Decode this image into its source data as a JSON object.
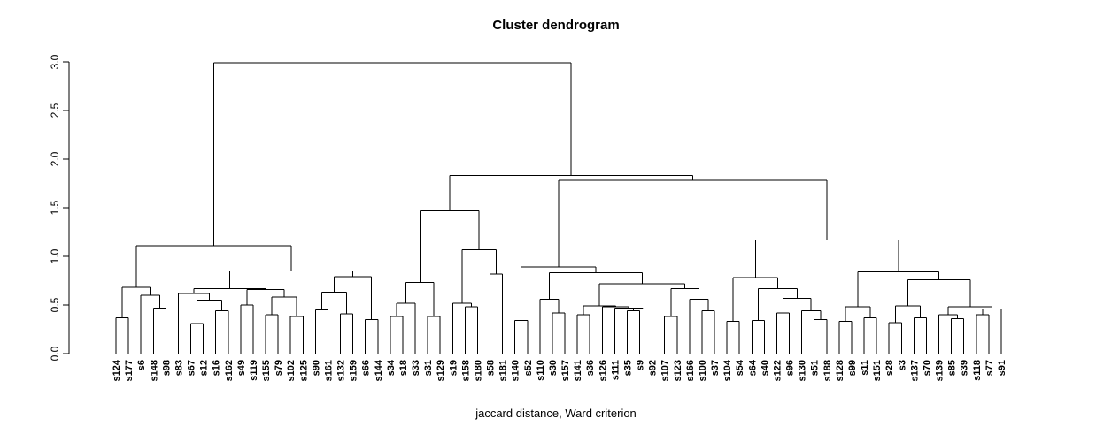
{
  "title": "Cluster dendrogram",
  "xlabel": "jaccard distance, Ward criterion",
  "chart_data": {
    "type": "dendrogram",
    "title": "Cluster dendrogram",
    "xlabel": "jaccard distance, Ward criterion",
    "ylim": [
      0,
      3
    ],
    "y_ticks": [
      0,
      0.5,
      1,
      1.5,
      2,
      2.5,
      3
    ],
    "y_tick_labels": [
      "0.0",
      "0.5",
      "1.0",
      "1.5",
      "2.0",
      "2.5",
      "3.0"
    ],
    "grid": "off",
    "line_color": "#000000",
    "label_colors": {
      "red": "#FF0000",
      "cyan": "#00FFFF"
    },
    "leaves": [
      {
        "name": "s124",
        "color": "cyan"
      },
      {
        "name": "s177",
        "color": "cyan"
      },
      {
        "name": "s6",
        "color": "red"
      },
      {
        "name": "s148",
        "color": "cyan"
      },
      {
        "name": "s98",
        "color": "red"
      },
      {
        "name": "s83",
        "color": "red"
      },
      {
        "name": "s67",
        "color": "cyan"
      },
      {
        "name": "s12",
        "color": "cyan"
      },
      {
        "name": "s16",
        "color": "red"
      },
      {
        "name": "s162",
        "color": "red"
      },
      {
        "name": "s49",
        "color": "cyan"
      },
      {
        "name": "s119",
        "color": "red"
      },
      {
        "name": "s155",
        "color": "red"
      },
      {
        "name": "s79",
        "color": "red"
      },
      {
        "name": "s102",
        "color": "red"
      },
      {
        "name": "s125",
        "color": "cyan"
      },
      {
        "name": "s90",
        "color": "red"
      },
      {
        "name": "s161",
        "color": "red"
      },
      {
        "name": "s132",
        "color": "red"
      },
      {
        "name": "s159",
        "color": "cyan"
      },
      {
        "name": "s66",
        "color": "cyan"
      },
      {
        "name": "s144",
        "color": "red"
      },
      {
        "name": "s34",
        "color": "red"
      },
      {
        "name": "s18",
        "color": "red"
      },
      {
        "name": "s33",
        "color": "red"
      },
      {
        "name": "s31",
        "color": "red"
      },
      {
        "name": "s129",
        "color": "red"
      },
      {
        "name": "s19",
        "color": "cyan"
      },
      {
        "name": "s158",
        "color": "cyan"
      },
      {
        "name": "s180",
        "color": "cyan"
      },
      {
        "name": "s58",
        "color": "red"
      },
      {
        "name": "s181",
        "color": "red"
      },
      {
        "name": "s140",
        "color": "cyan"
      },
      {
        "name": "s52",
        "color": "cyan"
      },
      {
        "name": "s110",
        "color": "cyan"
      },
      {
        "name": "s30",
        "color": "cyan"
      },
      {
        "name": "s157",
        "color": "cyan"
      },
      {
        "name": "s141",
        "color": "cyan"
      },
      {
        "name": "s36",
        "color": "cyan"
      },
      {
        "name": "s126",
        "color": "red"
      },
      {
        "name": "s111",
        "color": "cyan"
      },
      {
        "name": "s35",
        "color": "red"
      },
      {
        "name": "s9",
        "color": "cyan"
      },
      {
        "name": "s92",
        "color": "red"
      },
      {
        "name": "s107",
        "color": "cyan"
      },
      {
        "name": "s123",
        "color": "cyan"
      },
      {
        "name": "s166",
        "color": "red"
      },
      {
        "name": "s100",
        "color": "red"
      },
      {
        "name": "s37",
        "color": "red"
      },
      {
        "name": "s104",
        "color": "cyan"
      },
      {
        "name": "s54",
        "color": "cyan"
      },
      {
        "name": "s64",
        "color": "cyan"
      },
      {
        "name": "s40",
        "color": "cyan"
      },
      {
        "name": "s122",
        "color": "cyan"
      },
      {
        "name": "s96",
        "color": "red"
      },
      {
        "name": "s130",
        "color": "cyan"
      },
      {
        "name": "s51",
        "color": "red"
      },
      {
        "name": "s188",
        "color": "cyan"
      },
      {
        "name": "s128",
        "color": "cyan"
      },
      {
        "name": "s99",
        "color": "red"
      },
      {
        "name": "s11",
        "color": "red"
      },
      {
        "name": "s151",
        "color": "red"
      },
      {
        "name": "s28",
        "color": "red"
      },
      {
        "name": "s3",
        "color": "cyan"
      },
      {
        "name": "s137",
        "color": "cyan"
      },
      {
        "name": "s70",
        "color": "cyan"
      },
      {
        "name": "s139",
        "color": "cyan"
      },
      {
        "name": "s85",
        "color": "cyan"
      },
      {
        "name": "s39",
        "color": "red"
      },
      {
        "name": "s118",
        "color": "cyan"
      },
      {
        "name": "s77",
        "color": "red"
      },
      {
        "name": "s91",
        "color": "cyan"
      }
    ],
    "tree": {
      "h": 2.99,
      "c": [
        {
          "h": 1.11,
          "c": [
            {
              "h": 0.68,
              "c": [
                {
                  "h": 0.37,
                  "c": [
                    "s124",
                    "s177"
                  ]
                },
                {
                  "h": 0.6,
                  "c": [
                    "s6",
                    {
                      "h": 0.47,
                      "c": [
                        "s148",
                        "s98"
                      ]
                    }
                  ]
                }
              ]
            },
            {
              "h": 0.85,
              "c": [
                {
                  "h": 0.67,
                  "c": [
                    {
                      "h": 0.62,
                      "c": [
                        "s83",
                        {
                          "h": 0.55,
                          "c": [
                            {
                              "h": 0.31,
                              "c": [
                                "s67",
                                "s12"
                              ]
                            },
                            {
                              "h": 0.44,
                              "c": [
                                "s16",
                                "s162"
                              ]
                            }
                          ]
                        }
                      ]
                    },
                    {
                      "h": 0.66,
                      "c": [
                        {
                          "h": 0.5,
                          "c": [
                            "s49",
                            "s119"
                          ]
                        },
                        {
                          "h": 0.58,
                          "c": [
                            {
                              "h": 0.4,
                              "c": [
                                "s155",
                                "s79"
                              ]
                            },
                            {
                              "h": 0.38,
                              "c": [
                                "s102",
                                "s125"
                              ]
                            }
                          ]
                        }
                      ]
                    }
                  ]
                },
                {
                  "h": 0.79,
                  "c": [
                    {
                      "h": 0.63,
                      "c": [
                        {
                          "h": 0.45,
                          "c": [
                            "s90",
                            "s161"
                          ]
                        },
                        {
                          "h": 0.41,
                          "c": [
                            "s132",
                            "s159"
                          ]
                        }
                      ]
                    },
                    {
                      "h": 0.35,
                      "c": [
                        "s66",
                        "s144"
                      ]
                    }
                  ]
                }
              ]
            }
          ]
        },
        {
          "h": 1.83,
          "c": [
            {
              "h": 1.47,
              "c": [
                {
                  "h": 0.73,
                  "c": [
                    {
                      "h": 0.52,
                      "c": [
                        {
                          "h": 0.38,
                          "c": [
                            "s34",
                            "s18"
                          ]
                        },
                        "s33"
                      ]
                    },
                    {
                      "h": 0.38,
                      "c": [
                        "s31",
                        "s129"
                      ]
                    }
                  ]
                },
                {
                  "h": 1.07,
                  "c": [
                    {
                      "h": 0.52,
                      "c": [
                        "s19",
                        {
                          "h": 0.48,
                          "c": [
                            "s158",
                            "s180"
                          ]
                        }
                      ]
                    },
                    {
                      "h": 0.82,
                      "c": [
                        "s58",
                        "s181"
                      ]
                    }
                  ]
                }
              ]
            },
            {
              "h": 1.78,
              "c": [
                {
                  "h": 0.89,
                  "c": [
                    {
                      "h": 0.34,
                      "c": [
                        "s140",
                        "s52"
                      ]
                    },
                    {
                      "h": 0.83,
                      "c": [
                        {
                          "h": 0.56,
                          "c": [
                            "s110",
                            {
                              "h": 0.42,
                              "c": [
                                "s30",
                                "s157"
                              ]
                            }
                          ]
                        },
                        {
                          "h": 0.72,
                          "c": [
                            {
                              "h": 0.49,
                              "c": [
                                {
                                  "h": 0.4,
                                  "c": [
                                    "s141",
                                    "s36"
                                  ]
                                },
                                {
                                  "h": 0.48,
                                  "c": [
                                    "s126",
                                    {
                                      "h": 0.47,
                                      "c": [
                                        "s111",
                                        {
                                          "h": 0.46,
                                          "c": [
                                            {
                                              "h": 0.44,
                                              "c": [
                                                "s35",
                                                "s9"
                                              ]
                                            },
                                            "s92"
                                          ]
                                        }
                                      ]
                                    }
                                  ]
                                }
                              ]
                            },
                            {
                              "h": 0.67,
                              "c": [
                                {
                                  "h": 0.38,
                                  "c": [
                                    "s107",
                                    "s123"
                                  ]
                                },
                                {
                                  "h": 0.56,
                                  "c": [
                                    "s166",
                                    {
                                      "h": 0.44,
                                      "c": [
                                        "s100",
                                        "s37"
                                      ]
                                    }
                                  ]
                                }
                              ]
                            }
                          ]
                        }
                      ]
                    }
                  ]
                },
                {
                  "h": 1.17,
                  "c": [
                    {
                      "h": 0.78,
                      "c": [
                        {
                          "h": 0.33,
                          "c": [
                            "s104",
                            "s54"
                          ]
                        },
                        {
                          "h": 0.67,
                          "c": [
                            {
                              "h": 0.34,
                              "c": [
                                "s64",
                                "s40"
                              ]
                            },
                            {
                              "h": 0.57,
                              "c": [
                                {
                                  "h": 0.42,
                                  "c": [
                                    "s122",
                                    "s96"
                                  ]
                                },
                                {
                                  "h": 0.44,
                                  "c": [
                                    "s130",
                                    {
                                      "h": 0.35,
                                      "c": [
                                        "s51",
                                        "s188"
                                      ]
                                    }
                                  ]
                                }
                              ]
                            }
                          ]
                        }
                      ]
                    },
                    {
                      "h": 0.84,
                      "c": [
                        {
                          "h": 0.48,
                          "c": [
                            {
                              "h": 0.33,
                              "c": [
                                "s128",
                                "s99"
                              ]
                            },
                            {
                              "h": 0.37,
                              "c": [
                                "s11",
                                "s151"
                              ]
                            }
                          ]
                        },
                        {
                          "h": 0.76,
                          "c": [
                            {
                              "h": 0.49,
                              "c": [
                                {
                                  "h": 0.32,
                                  "c": [
                                    "s28",
                                    "s3"
                                  ]
                                },
                                {
                                  "h": 0.37,
                                  "c": [
                                    "s137",
                                    "s70"
                                  ]
                                }
                              ]
                            },
                            {
                              "h": 0.48,
                              "c": [
                                {
                                  "h": 0.4,
                                  "c": [
                                    "s139",
                                    {
                                      "h": 0.36,
                                      "c": [
                                        "s85",
                                        "s39"
                                      ]
                                    }
                                  ]
                                },
                                {
                                  "h": 0.46,
                                  "c": [
                                    {
                                      "h": 0.4,
                                      "c": [
                                        "s118",
                                        "s77"
                                      ]
                                    },
                                    "s91"
                                  ]
                                }
                              ]
                            }
                          ]
                        }
                      ]
                    }
                  ]
                }
              ]
            }
          ]
        }
      ]
    }
  }
}
